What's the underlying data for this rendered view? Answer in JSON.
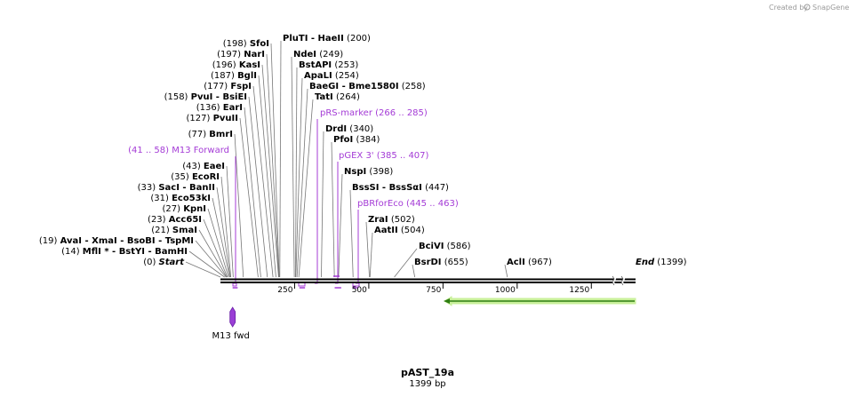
{
  "watermark": {
    "created_by": "Created by",
    "brand": "SnapGene"
  },
  "plasmid": {
    "name": "pAST_19a",
    "length_label": "1399 bp",
    "length": 1399
  },
  "sites": [
    {
      "label": "(198)",
      "name": "SfoI",
      "pos": 198
    },
    {
      "label": "(197)",
      "name": "NarI",
      "pos": 197
    },
    {
      "label": "(196)",
      "name": "KasI",
      "pos": 196
    },
    {
      "label": "(187)",
      "name": "BglI",
      "pos": 187
    },
    {
      "label": "(177)",
      "name": "FspI",
      "pos": 177
    },
    {
      "label": "(158)",
      "name": "PvuI  - BsiEI",
      "pos": 158
    },
    {
      "label": "(136)",
      "name": "EarI",
      "pos": 136
    },
    {
      "label": "(127)",
      "name": "PvuII",
      "pos": 127
    },
    {
      "label": "(77)",
      "name": "BmrI",
      "pos": 77
    },
    {
      "label": "(43)",
      "name": "EaeI",
      "pos": 43
    },
    {
      "label": "(35)",
      "name": "EcoRI",
      "pos": 35
    },
    {
      "label": "(33)",
      "name": "SacI  - BanII",
      "pos": 33
    },
    {
      "label": "(31)",
      "name": "Eco53kI",
      "pos": 31
    },
    {
      "label": "(27)",
      "name": "KpnI",
      "pos": 27
    },
    {
      "label": "(23)",
      "name": "Acc65I",
      "pos": 23
    },
    {
      "label": "(21)",
      "name": "SmaI",
      "pos": 21
    },
    {
      "label": "(19)",
      "name": "AvaI  - XmaI  - BsoBI  - TspMI",
      "pos": 19
    },
    {
      "label": "(14)",
      "name": "MflI *  - BstYI  - BamHI",
      "pos": 14
    },
    {
      "label": "(0)",
      "name": "Start",
      "pos": 0
    },
    {
      "label": "(200)",
      "name": "PluTI  - HaeII",
      "pos": 200
    },
    {
      "label": "(249)",
      "name": "NdeI",
      "pos": 249
    },
    {
      "label": "(253)",
      "name": "BstAPI",
      "pos": 253
    },
    {
      "label": "(254)",
      "name": "ApaLI",
      "pos": 254
    },
    {
      "label": "(258)",
      "name": "BaeGI  - Bme1580I",
      "pos": 258
    },
    {
      "label": "(264)",
      "name": "TatI",
      "pos": 264
    },
    {
      "label": "(340)",
      "name": "DrdI",
      "pos": 340
    },
    {
      "label": "(384)",
      "name": "PfoI",
      "pos": 384
    },
    {
      "label": "(398)",
      "name": "NspI",
      "pos": 398
    },
    {
      "label": "(447)",
      "name": "BssSI  - BssSαI",
      "pos": 447
    },
    {
      "label": "(502)",
      "name": "ZraI",
      "pos": 502
    },
    {
      "label": "(504)",
      "name": "AatII",
      "pos": 504
    },
    {
      "label": "(586)",
      "name": "BciVI",
      "pos": 586
    },
    {
      "label": "(655)",
      "name": "BsrDI",
      "pos": 655
    },
    {
      "label": "(967)",
      "name": "AclI",
      "pos": 967
    },
    {
      "label": "(1399)",
      "name": "End",
      "pos": 1399
    }
  ],
  "primers": [
    {
      "name": "M13 Forward",
      "range": "(41 .. 58)",
      "start": 41,
      "end": 58
    },
    {
      "name": "pRS-marker",
      "range": "(266 .. 285)",
      "start": 266,
      "end": 285
    },
    {
      "name": "pGEX 3'",
      "range": "(385 .. 407)",
      "start": 385,
      "end": 407
    },
    {
      "name": "pBRforEco",
      "range": "(445 .. 463)",
      "start": 445,
      "end": 463
    }
  ],
  "ticks": [
    "250",
    "500",
    "750",
    "1000",
    "1250"
  ],
  "tick_values": [
    250,
    500,
    750,
    1000,
    1250
  ],
  "feature": {
    "name": "M13 fwd"
  },
  "colors": {
    "primer": "#a43bd6",
    "feature": "#9b3fd6",
    "orf_fill": "#c8f09a",
    "orf_edge": "#2e7d12",
    "line": "#777777"
  }
}
